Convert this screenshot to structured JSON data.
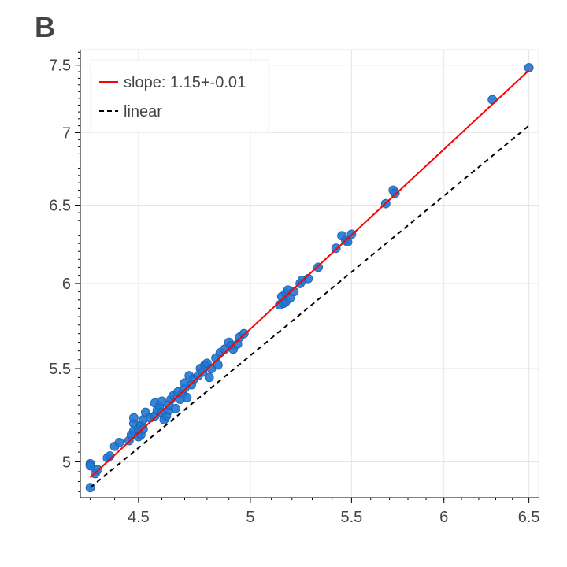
{
  "panel_label": "B",
  "chart_data": {
    "type": "scatter",
    "title": "",
    "xlabel": "",
    "ylabel": "",
    "x_scale": "log",
    "y_scale": "log",
    "xlim": [
      4.26,
      6.56
    ],
    "ylim": [
      4.82,
      7.62
    ],
    "x_ticks": [
      {
        "value": 4.5,
        "label": "4.5"
      },
      {
        "value": 5,
        "label": "5"
      },
      {
        "value": 5.5,
        "label": "5.5"
      },
      {
        "value": 6,
        "label": "6"
      },
      {
        "value": 6.5,
        "label": "6.5"
      }
    ],
    "y_ticks": [
      {
        "value": 5,
        "label": "5"
      },
      {
        "value": 5.5,
        "label": "5.5"
      },
      {
        "value": 6,
        "label": "6"
      },
      {
        "value": 6.5,
        "label": "6.5"
      },
      {
        "value": 7,
        "label": "7"
      },
      {
        "value": 7.5,
        "label": "7.5"
      }
    ],
    "grid": true,
    "legend_position": "top-left",
    "colors": {
      "points": "#1f77d4",
      "fit": "#ff0000",
      "linear": "#000000"
    },
    "series": [
      {
        "name": "",
        "kind": "points",
        "points": [
          [
            4.3,
            4.99
          ],
          [
            4.3,
            4.98
          ],
          [
            4.3,
            4.87
          ],
          [
            4.32,
            4.94
          ],
          [
            4.33,
            4.96
          ],
          [
            4.37,
            5.02
          ],
          [
            4.38,
            5.03
          ],
          [
            4.4,
            5.08
          ],
          [
            4.42,
            5.1
          ],
          [
            4.46,
            5.11
          ],
          [
            4.47,
            5.14
          ],
          [
            4.48,
            5.16
          ],
          [
            4.48,
            5.2
          ],
          [
            4.48,
            5.23
          ],
          [
            4.5,
            5.13
          ],
          [
            4.5,
            5.17
          ],
          [
            4.51,
            5.19
          ],
          [
            4.51,
            5.14
          ],
          [
            4.52,
            5.17
          ],
          [
            4.52,
            5.22
          ],
          [
            4.53,
            5.26
          ],
          [
            4.55,
            5.23
          ],
          [
            4.57,
            5.31
          ],
          [
            4.57,
            5.24
          ],
          [
            4.58,
            5.27
          ],
          [
            4.59,
            5.29
          ],
          [
            4.6,
            5.32
          ],
          [
            4.6,
            5.26
          ],
          [
            4.61,
            5.22
          ],
          [
            4.62,
            5.24
          ],
          [
            4.63,
            5.27
          ],
          [
            4.63,
            5.3
          ],
          [
            4.64,
            5.33
          ],
          [
            4.65,
            5.35
          ],
          [
            4.66,
            5.28
          ],
          [
            4.67,
            5.37
          ],
          [
            4.68,
            5.33
          ],
          [
            4.69,
            5.36
          ],
          [
            4.7,
            5.39
          ],
          [
            4.7,
            5.42
          ],
          [
            4.71,
            5.34
          ],
          [
            4.72,
            5.46
          ],
          [
            4.73,
            5.41
          ],
          [
            4.74,
            5.44
          ],
          [
            4.76,
            5.46
          ],
          [
            4.77,
            5.5
          ],
          [
            4.78,
            5.48
          ],
          [
            4.79,
            5.52
          ],
          [
            4.8,
            5.53
          ],
          [
            4.81,
            5.45
          ],
          [
            4.82,
            5.5
          ],
          [
            4.84,
            5.56
          ],
          [
            4.85,
            5.52
          ],
          [
            4.86,
            5.59
          ],
          [
            4.88,
            5.61
          ],
          [
            4.9,
            5.65
          ],
          [
            4.91,
            5.63
          ],
          [
            4.92,
            5.61
          ],
          [
            4.94,
            5.64
          ],
          [
            4.95,
            5.68
          ],
          [
            4.97,
            5.7
          ],
          [
            5.14,
            5.87
          ],
          [
            5.15,
            5.92
          ],
          [
            5.16,
            5.88
          ],
          [
            5.17,
            5.94
          ],
          [
            5.17,
            5.89
          ],
          [
            5.18,
            5.96
          ],
          [
            5.19,
            5.91
          ],
          [
            5.21,
            5.95
          ],
          [
            5.24,
            6.0
          ],
          [
            5.25,
            6.02
          ],
          [
            5.28,
            6.03
          ],
          [
            5.33,
            6.1
          ],
          [
            5.42,
            6.22
          ],
          [
            5.45,
            6.3
          ],
          [
            5.47,
            6.27
          ],
          [
            5.48,
            6.26
          ],
          [
            5.5,
            6.31
          ],
          [
            5.68,
            6.51
          ],
          [
            5.72,
            6.6
          ],
          [
            5.73,
            6.58
          ],
          [
            6.28,
            7.24
          ],
          [
            6.5,
            7.48
          ]
        ]
      },
      {
        "name": "slope: 1.15+-0.01",
        "kind": "line",
        "style": "solid",
        "points": [
          [
            4.3,
            4.92
          ],
          [
            6.5,
            7.46
          ]
        ]
      },
      {
        "name": "linear",
        "kind": "line",
        "style": "dashed",
        "points": [
          [
            4.3,
            4.87
          ],
          [
            6.5,
            7.05
          ]
        ]
      }
    ]
  }
}
